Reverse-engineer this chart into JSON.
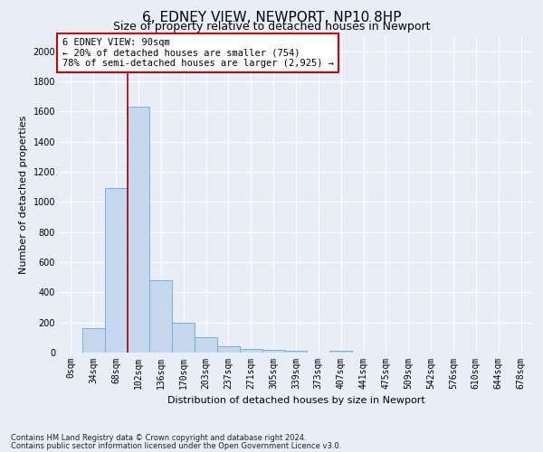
{
  "title": "6, EDNEY VIEW, NEWPORT, NP10 8HP",
  "subtitle": "Size of property relative to detached houses in Newport",
  "xlabel": "Distribution of detached houses by size in Newport",
  "ylabel": "Number of detached properties",
  "footnote1": "Contains HM Land Registry data © Crown copyright and database right 2024.",
  "footnote2": "Contains public sector information licensed under the Open Government Licence v3.0.",
  "annotation_line1": "6 EDNEY VIEW: 90sqm",
  "annotation_line2": "← 20% of detached houses are smaller (754)",
  "annotation_line3": "78% of semi-detached houses are larger (2,925) →",
  "bar_color": "#c5d8ed",
  "bar_edge_color": "#7aafd4",
  "ref_line_color": "#aa0000",
  "ref_line_x": 2.5,
  "categories": [
    "0sqm",
    "34sqm",
    "68sqm",
    "102sqm",
    "136sqm",
    "170sqm",
    "203sqm",
    "237sqm",
    "271sqm",
    "305sqm",
    "339sqm",
    "373sqm",
    "407sqm",
    "441sqm",
    "475sqm",
    "509sqm",
    "542sqm",
    "576sqm",
    "610sqm",
    "644sqm",
    "678sqm"
  ],
  "values": [
    0,
    165,
    1090,
    1630,
    480,
    200,
    100,
    45,
    25,
    20,
    15,
    0,
    15,
    0,
    0,
    0,
    0,
    0,
    0,
    0,
    0
  ],
  "ylim": [
    0,
    2100
  ],
  "yticks": [
    0,
    200,
    400,
    600,
    800,
    1000,
    1200,
    1400,
    1600,
    1800,
    2000
  ],
  "background_color": "#e8eef8",
  "grid_color": "#ffffff",
  "title_fontsize": 11,
  "subtitle_fontsize": 9,
  "axis_label_fontsize": 8,
  "tick_fontsize": 7,
  "annotation_box_color": "#cc0000",
  "annotation_fontsize": 7.5
}
